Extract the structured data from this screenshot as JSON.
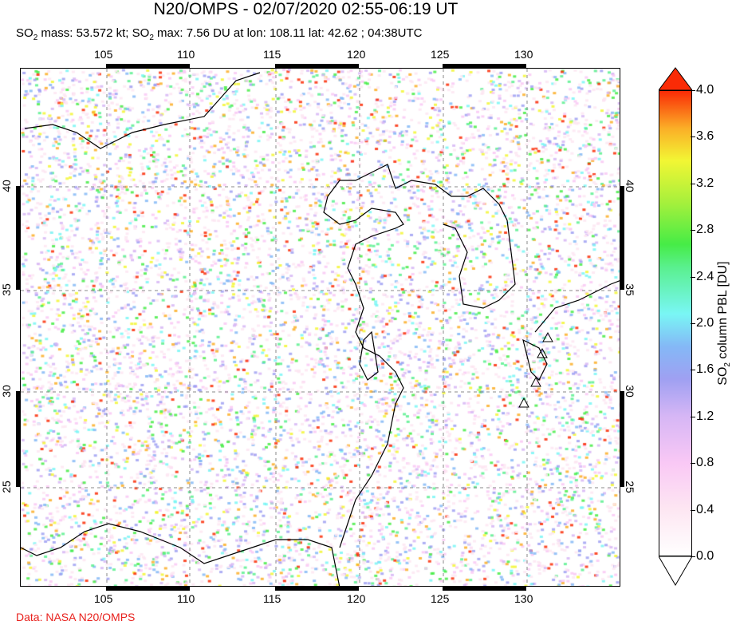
{
  "title": "N20/OMPS - 02/07/2020 02:55-06:19 UT",
  "subtitle": {
    "mass_label": "SO",
    "mass_rest": " mass: 53.572 kt; ",
    "max_label": "SO",
    "max_rest": " max: 7.56 DU at lon: 108.11 lat: 42.62 ; 04:38UTC",
    "sub": "2"
  },
  "lon_ticks": [
    "105",
    "110",
    "115",
    "120",
    "125",
    "130"
  ],
  "lat_ticks": [
    "40",
    "35",
    "30",
    "25"
  ],
  "colorbar": {
    "labels": [
      "4.0",
      "3.6",
      "3.2",
      "2.8",
      "2.4",
      "2.0",
      "1.6",
      "1.2",
      "0.8",
      "0.4",
      "0.0"
    ],
    "title_pre": "SO",
    "title_sub": "2",
    "title_post": " column PBL [DU]",
    "min": 0.0,
    "max": 4.0
  },
  "credit": "Data: NASA N20/OMPS",
  "colors": {
    "credit": "#e8211d",
    "max": "#fa2b06"
  }
}
